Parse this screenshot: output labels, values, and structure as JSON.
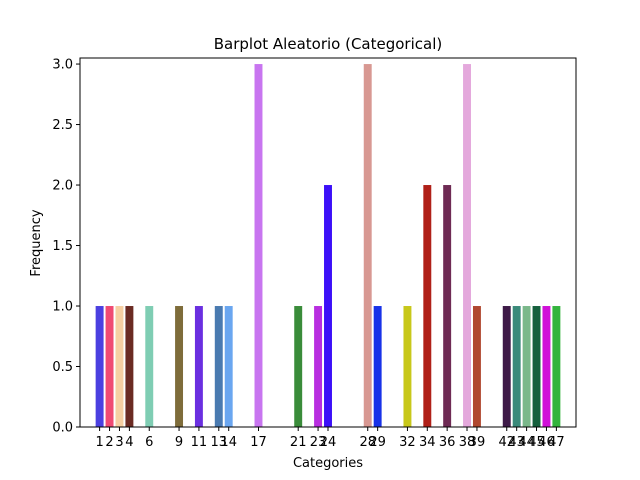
{
  "chart_data": {
    "type": "bar",
    "title": "Barplot Aleatorio (Categorical)",
    "xlabel": "Categories",
    "ylabel": "Frequency",
    "ylim": [
      0,
      3.05
    ],
    "y_ticks": [
      "0.0",
      "0.5",
      "1.0",
      "1.5",
      "2.0",
      "2.5",
      "3.0"
    ],
    "grid": false,
    "legend": "none",
    "categories": [
      "1",
      "2",
      "3",
      "4",
      "6",
      "9",
      "11",
      "13",
      "14",
      "17",
      "21",
      "23",
      "24",
      "28",
      "29",
      "32",
      "34",
      "36",
      "38",
      "39",
      "42",
      "43",
      "44",
      "45",
      "46",
      "47"
    ],
    "values": [
      1,
      1,
      1,
      1,
      1,
      1,
      1,
      1,
      1,
      3,
      1,
      1,
      2,
      3,
      1,
      1,
      2,
      2,
      3,
      1,
      1,
      1,
      1,
      1,
      1,
      1
    ],
    "colors": [
      "#4b40e0",
      "#f04a72",
      "#f6cfa2",
      "#6b2b23",
      "#7fcdb3",
      "#7e6c3a",
      "#6a2fe0",
      "#4a7ab0",
      "#6aa6f0",
      "#c875f0",
      "#3a8c3a",
      "#b82ee0",
      "#3c10f8",
      "#d89892",
      "#1832e8",
      "#c8c81a",
      "#b02018",
      "#6e2a54",
      "#e4a8dc",
      "#b04830",
      "#3e1a48",
      "#3a8a7a",
      "#7ab88a",
      "#16603e",
      "#d010d8",
      "#34b43e"
    ]
  }
}
